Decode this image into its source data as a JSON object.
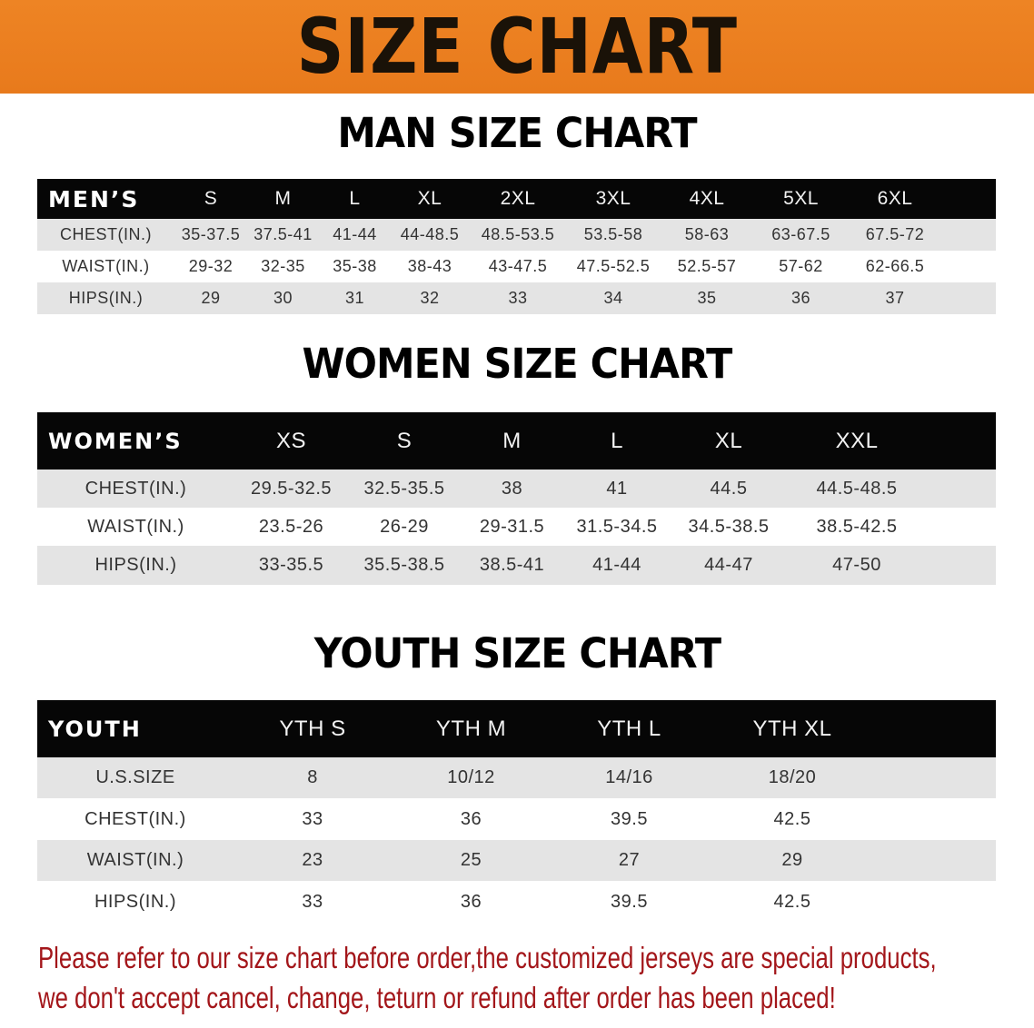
{
  "banner": {
    "title": "SIZE CHART",
    "color": "#ec8022"
  },
  "men": {
    "title": "MAN SIZE CHART",
    "header": [
      "MEN’S",
      "S",
      "M",
      "L",
      "XL",
      "2XL",
      "3XL",
      "4XL",
      "5XL",
      "6XL",
      ""
    ],
    "rows": [
      [
        "CHEST(IN.)",
        "35-37.5",
        "37.5-41",
        "41-44",
        "44-48.5",
        "48.5-53.5",
        "53.5-58",
        "58-63",
        "63-67.5",
        "67.5-72",
        ""
      ],
      [
        "WAIST(IN.)",
        "29-32",
        "32-35",
        "35-38",
        "38-43",
        "43-47.5",
        "47.5-52.5",
        "52.5-57",
        "57-62",
        "62-66.5",
        ""
      ],
      [
        "HIPS(IN.)",
        "29",
        "30",
        "31",
        "32",
        "33",
        "34",
        "35",
        "36",
        "37",
        ""
      ]
    ]
  },
  "women": {
    "title": "WOMEN SIZE CHART",
    "header": [
      "WOMEN’S",
      "XS",
      "S",
      "M",
      "L",
      "XL",
      "XXL",
      ""
    ],
    "rows": [
      [
        "CHEST(IN.)",
        "29.5-32.5",
        "32.5-35.5",
        "38",
        "41",
        "44.5",
        "44.5-48.5",
        ""
      ],
      [
        "WAIST(IN.)",
        "23.5-26",
        "26-29",
        "29-31.5",
        "31.5-34.5",
        "34.5-38.5",
        "38.5-42.5",
        ""
      ],
      [
        "HIPS(IN.)",
        "33-35.5",
        "35.5-38.5",
        "38.5-41",
        "41-44",
        "44-47",
        "47-50",
        ""
      ]
    ]
  },
  "youth": {
    "title": "YOUTH SIZE CHART",
    "header": [
      "YOUTH",
      "YTH S",
      "YTH M",
      "YTH L",
      "YTH XL",
      ""
    ],
    "rows": [
      [
        "U.S.SIZE",
        "8",
        "10/12",
        "14/16",
        "18/20",
        ""
      ],
      [
        "CHEST(IN.)",
        "33",
        "36",
        "39.5",
        "42.5",
        ""
      ],
      [
        "WAIST(IN.)",
        "23",
        "25",
        "27",
        "29",
        ""
      ],
      [
        "HIPS(IN.)",
        "33",
        "36",
        "39.5",
        "42.5",
        ""
      ]
    ]
  },
  "footer": {
    "line1": "Please refer to our size chart before order,the customized jerseys are special products,",
    "line2": "we don't accept cancel, change, teturn or refund after order has been placed!",
    "color": "#a3161a"
  }
}
